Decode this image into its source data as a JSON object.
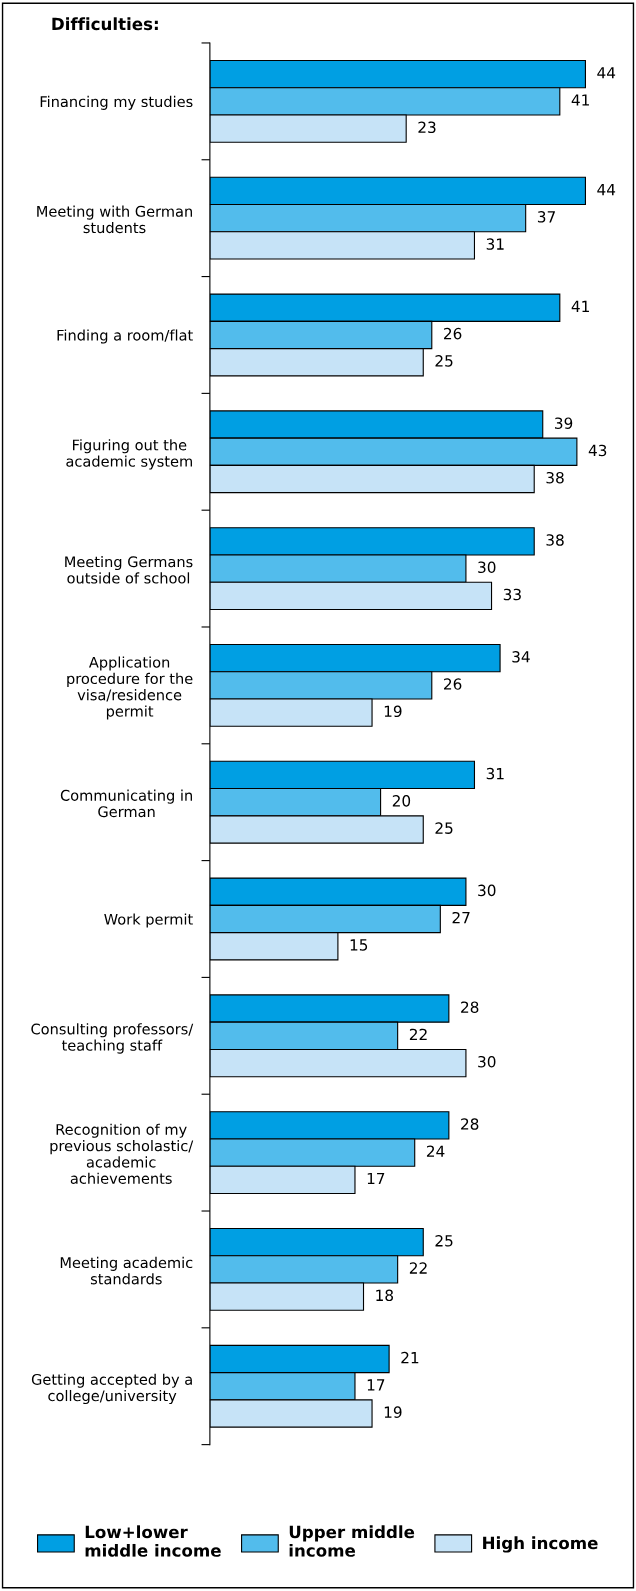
{
  "chart_data": {
    "type": "bar",
    "orientation": "horizontal",
    "title": "Difficulties:",
    "categories": [
      "Financing my studies",
      "Meeting with German\nstudents",
      "Finding a room/flat",
      "Figuring out the\nacademic system",
      "Meeting Germans\noutside of school",
      "Application\nprocedure for the\nvisa/residence\npermit",
      "Communicating in\nGerman",
      "Work permit",
      "Consulting professors/\nteaching staff",
      "Recognition of my\nprevious scholastic/\nacademic\nachievements",
      "Meeting academic\nstandards",
      "Getting accepted by a\ncollege/university"
    ],
    "series": [
      {
        "name": "Low+lower\nmiddle income",
        "color": "#009fe3",
        "values": [
          44,
          44,
          41,
          39,
          38,
          34,
          31,
          30,
          28,
          28,
          25,
          21
        ]
      },
      {
        "name": "Upper middle\nincome",
        "color": "#52bcec",
        "values": [
          41,
          37,
          26,
          43,
          30,
          26,
          20,
          27,
          22,
          24,
          22,
          17
        ]
      },
      {
        "name": "High income",
        "color": "#c6e3f7",
        "values": [
          23,
          31,
          25,
          38,
          33,
          19,
          25,
          15,
          30,
          17,
          18,
          19
        ]
      }
    ],
    "data_labels": true,
    "tick_labels": "y",
    "legend": "bottom",
    "grid": false
  }
}
